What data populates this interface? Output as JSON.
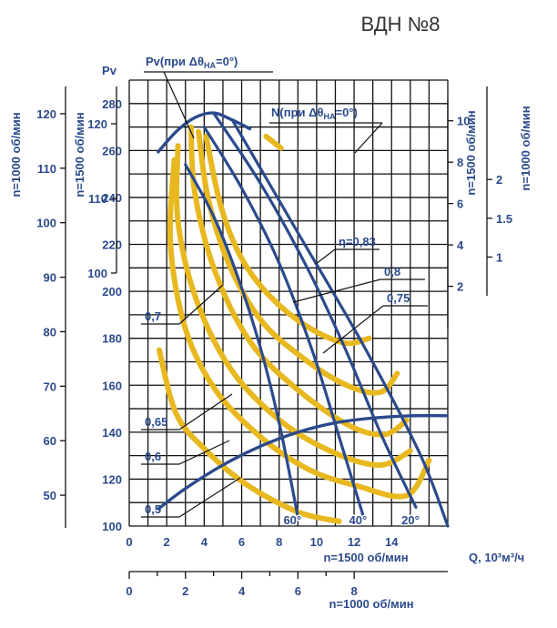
{
  "chart_data": {
    "type": "line",
    "title": "ВДН №8",
    "ylabel": "Pv",
    "xlabel": "Q, 10³м³/ч",
    "colors": {
      "grid": "#111111",
      "text": "#2b4a8c",
      "blade": "#2b4a8c",
      "efficiency": "#e8b820"
    },
    "scale_1500": {
      "label": "n=1500 об/мин",
      "ticks": [
        0,
        2,
        4,
        6,
        8,
        10,
        12,
        14
      ],
      "range": [
        0,
        17
      ]
    },
    "scale_1000": {
      "label": "n=1000 об/мин",
      "ticks": [
        0,
        2,
        4,
        6,
        8
      ],
      "range": [
        0,
        11.33
      ]
    },
    "pv": {
      "ticks": [
        100,
        120,
        140,
        160,
        180,
        200,
        220,
        240,
        260,
        280
      ],
      "range": [
        100,
        290
      ]
    },
    "left_1500": {
      "label": "n=1500 об/мин",
      "ticks": [
        100,
        110,
        120
      ],
      "range": [
        100,
        125
      ]
    },
    "left_1000": {
      "label": "n=1000 об/мин",
      "ticks": [
        50,
        60,
        70,
        80,
        90,
        100,
        110,
        120
      ],
      "range": [
        44,
        125
      ]
    },
    "n_1500": {
      "label": "n=1500 об/мин",
      "ticks": [
        2,
        4,
        6,
        8,
        10
      ],
      "range": [
        0,
        11
      ]
    },
    "n_1000": {
      "label": "n=1000 об/мин",
      "ticks": [
        1.0,
        1.5,
        2
      ],
      "range": [
        0.5,
        3.2
      ]
    },
    "pv_curve_label": "Pv(при Δθ",
    "pv_curve_sub": "НА",
    "pv_curve_tail": "=0°)",
    "n_curve_label": "N(при Δθ",
    "n_curve_sub": "НА",
    "n_curve_tail": "=0°)",
    "pv_envelope": [
      [
        1.5,
        259
      ],
      [
        2.5,
        268
      ],
      [
        3.5,
        274
      ],
      [
        4.5,
        276
      ],
      [
        5.5,
        273
      ],
      [
        6.5,
        269
      ]
    ],
    "power_curve": [
      [
        1.5,
        107
      ],
      [
        3,
        116
      ],
      [
        5,
        126
      ],
      [
        7,
        134
      ],
      [
        9,
        140
      ],
      [
        11,
        144
      ],
      [
        13,
        146
      ],
      [
        15,
        147
      ],
      [
        17,
        147
      ]
    ],
    "blade_curves": [
      {
        "angle": "60°",
        "points": [
          [
            3,
            254
          ],
          [
            4.5,
            232
          ],
          [
            5.8,
            206
          ],
          [
            7,
            176
          ],
          [
            8,
            144
          ],
          [
            9,
            104
          ]
        ]
      },
      {
        "angle": "40°",
        "points": [
          [
            4,
            270
          ],
          [
            6,
            244
          ],
          [
            8,
            212
          ],
          [
            9.8,
            174
          ],
          [
            11.2,
            138
          ],
          [
            12.5,
            104
          ]
        ]
      },
      {
        "angle": "20°",
        "points": [
          [
            4.5,
            276
          ],
          [
            7,
            246
          ],
          [
            9.5,
            210
          ],
          [
            11.5,
            176
          ],
          [
            13.5,
            138
          ],
          [
            15.3,
            108
          ]
        ]
      },
      {
        "angle": "",
        "points": [
          [
            5.5,
            273
          ],
          [
            9,
            225
          ],
          [
            12.5,
            177
          ],
          [
            15.5,
            131
          ],
          [
            17,
            100
          ]
        ]
      }
    ],
    "efficiency_curves": [
      {
        "label": "η=0,83",
        "points": [
          [
            4.1,
            266
          ],
          [
            4.9,
            236
          ],
          [
            6,
            214
          ],
          [
            7.5,
            198
          ],
          [
            9.5,
            185
          ],
          [
            11.5,
            178
          ],
          [
            12.8,
            180
          ]
        ]
      },
      {
        "label": "0,8",
        "points": [
          [
            3.7,
            268
          ],
          [
            4.2,
            240
          ],
          [
            5.3,
            212
          ],
          [
            7,
            188
          ],
          [
            9.2,
            172
          ],
          [
            11.6,
            160
          ],
          [
            13.4,
            157
          ],
          [
            14.3,
            165
          ]
        ]
      },
      {
        "label": "0,75",
        "points": [
          [
            3.3,
            270
          ],
          [
            3.5,
            242
          ],
          [
            4.6,
            208
          ],
          [
            6.5,
            178
          ],
          [
            9,
            158
          ],
          [
            11.7,
            143
          ],
          [
            13.6,
            139
          ],
          [
            14.8,
            145
          ]
        ]
      },
      {
        "label": "0,7",
        "points": [
          [
            2.6,
            262
          ],
          [
            2.6,
            230
          ],
          [
            3.6,
            196
          ],
          [
            5.5,
            166
          ],
          [
            8.2,
            144
          ],
          [
            11,
            131
          ],
          [
            13.4,
            126
          ],
          [
            15,
            132
          ]
        ]
      },
      {
        "label": "0,65",
        "points": [
          [
            2.4,
            256
          ],
          [
            2.2,
            220
          ],
          [
            3,
            184
          ],
          [
            4.6,
            158
          ],
          [
            7,
            138
          ],
          [
            9.6,
            124
          ],
          [
            12.2,
            117
          ],
          [
            14.8,
            113
          ],
          [
            16,
            128
          ]
        ]
      },
      {
        "label": "0,6",
        "points": [
          [
            1.6,
            175
          ],
          [
            2.5,
            148
          ],
          [
            4,
            133
          ],
          [
            6.2,
            118
          ],
          [
            9,
            106
          ],
          [
            11.2,
            102
          ]
        ]
      },
      {
        "label": "0,5",
        "points": [
          [
            7.3,
            266
          ],
          [
            8.1,
            261
          ]
        ]
      }
    ],
    "leader_labels": [
      {
        "text": "0,7",
        "pv": 192
      },
      {
        "text": "0,65",
        "pv": 143
      },
      {
        "text": "0,6",
        "pv": 128
      },
      {
        "text": "0,5",
        "pv": 107
      }
    ]
  }
}
